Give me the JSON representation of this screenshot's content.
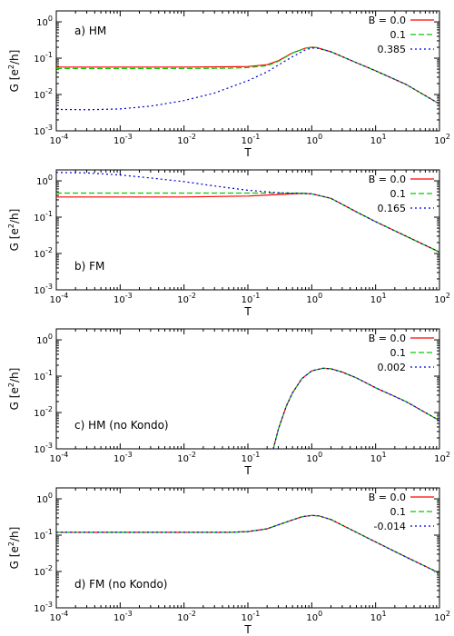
{
  "figure": {
    "x_tick_labels": [
      "10",
      "10",
      "10",
      "10",
      "10",
      "10",
      "10"
    ],
    "x_tick_exponents": [
      "-4",
      "-3",
      "-2",
      "-1",
      "0",
      "1",
      "2"
    ],
    "y_tick_labels": [
      "10",
      "10",
      "10",
      "10"
    ],
    "y_tick_exponents": [
      "0",
      "-1",
      "-2",
      "-3"
    ]
  },
  "chart_data": [
    {
      "type": "line",
      "title": "a)   HM",
      "xlabel": "T",
      "ylabel": "G [e²/h]",
      "ylabel_main": "G [e",
      "ylabel_sup": "2",
      "ylabel_end": "/h]",
      "xscale": "log",
      "yscale": "log",
      "xlim": [
        0.0001,
        100
      ],
      "ylim": [
        0.001,
        2
      ],
      "legend_position": "top-right",
      "grid": false,
      "series": [
        {
          "name": "B = 0.0",
          "color": "#ff0000",
          "dash": "solid",
          "x": [
            0.0001,
            0.001,
            0.01,
            0.05,
            0.1,
            0.2,
            0.3,
            0.5,
            0.8,
            1.0,
            1.2,
            2,
            5,
            10,
            30,
            100
          ],
          "y": [
            0.057,
            0.057,
            0.057,
            0.058,
            0.059,
            0.066,
            0.085,
            0.14,
            0.19,
            0.2,
            0.195,
            0.15,
            0.075,
            0.045,
            0.019,
            0.0055
          ]
        },
        {
          "name": "0.1",
          "color": "#00cc00",
          "dash": "6,3",
          "x": [
            0.0001,
            0.001,
            0.01,
            0.05,
            0.1,
            0.2,
            0.3,
            0.5,
            0.8,
            1.0,
            1.2,
            2,
            5,
            10,
            30,
            100
          ],
          "y": [
            0.052,
            0.052,
            0.052,
            0.053,
            0.055,
            0.062,
            0.082,
            0.138,
            0.19,
            0.2,
            0.195,
            0.15,
            0.075,
            0.045,
            0.019,
            0.0055
          ]
        },
        {
          "name": "0.385",
          "color": "#0000cc",
          "dash": "2,3",
          "x": [
            0.0001,
            0.0003,
            0.001,
            0.003,
            0.01,
            0.03,
            0.1,
            0.2,
            0.3,
            0.5,
            0.8,
            1.0,
            1.2,
            2,
            5,
            10,
            30,
            100
          ],
          "y": [
            0.0039,
            0.0038,
            0.004,
            0.0048,
            0.0068,
            0.011,
            0.024,
            0.042,
            0.065,
            0.11,
            0.17,
            0.19,
            0.19,
            0.15,
            0.075,
            0.045,
            0.019,
            0.0055
          ]
        }
      ]
    },
    {
      "type": "line",
      "title": "b)   FM",
      "xlabel": "T",
      "ylabel": "G [e²/h]",
      "ylabel_main": "G [e",
      "ylabel_sup": "2",
      "ylabel_end": "/h]",
      "xscale": "log",
      "yscale": "log",
      "xlim": [
        0.0001,
        100
      ],
      "ylim": [
        0.001,
        2
      ],
      "legend_position": "top-right",
      "grid": false,
      "series": [
        {
          "name": "B = 0.0",
          "color": "#ff0000",
          "dash": "solid",
          "x": [
            0.0001,
            0.001,
            0.01,
            0.03,
            0.1,
            0.3,
            0.7,
            1.0,
            2,
            5,
            10,
            30,
            100
          ],
          "y": [
            0.36,
            0.36,
            0.36,
            0.37,
            0.38,
            0.42,
            0.45,
            0.44,
            0.33,
            0.14,
            0.075,
            0.03,
            0.011
          ]
        },
        {
          "name": "0.1",
          "color": "#00cc00",
          "dash": "6,3",
          "x": [
            0.0001,
            0.001,
            0.01,
            0.1,
            0.3,
            0.7,
            1.0,
            2,
            5,
            10,
            30,
            100
          ],
          "y": [
            0.46,
            0.46,
            0.46,
            0.46,
            0.46,
            0.46,
            0.44,
            0.33,
            0.14,
            0.075,
            0.03,
            0.011
          ]
        },
        {
          "name": "0.165",
          "color": "#0000cc",
          "dash": "2,3",
          "x": [
            0.0001,
            0.0003,
            0.001,
            0.003,
            0.01,
            0.03,
            0.1,
            0.3,
            0.7,
            1.0,
            2,
            5,
            10,
            30,
            100
          ],
          "y": [
            1.7,
            1.65,
            1.45,
            1.2,
            0.95,
            0.72,
            0.55,
            0.47,
            0.45,
            0.44,
            0.33,
            0.14,
            0.075,
            0.03,
            0.011
          ]
        }
      ]
    },
    {
      "type": "line",
      "title": "c)   HM (no Kondo)",
      "xlabel": "T",
      "ylabel": "G [e²/h]",
      "ylabel_main": "G [e",
      "ylabel_sup": "2",
      "ylabel_end": "/h]",
      "xscale": "log",
      "yscale": "log",
      "xlim": [
        0.0001,
        100
      ],
      "ylim": [
        0.001,
        2
      ],
      "legend_position": "top-right",
      "grid": false,
      "series": [
        {
          "name": "B = 0.0",
          "color": "#ff0000",
          "dash": "solid",
          "x": [
            0.25,
            0.3,
            0.4,
            0.5,
            0.7,
            1.0,
            1.5,
            2,
            3,
            5,
            10,
            30,
            100
          ],
          "y": [
            0.001,
            0.0035,
            0.015,
            0.035,
            0.085,
            0.14,
            0.165,
            0.16,
            0.13,
            0.09,
            0.048,
            0.02,
            0.006
          ]
        },
        {
          "name": "0.1",
          "color": "#00cc00",
          "dash": "6,3",
          "x": [
            0.25,
            0.3,
            0.4,
            0.5,
            0.7,
            1.0,
            1.5,
            2,
            3,
            5,
            10,
            30,
            100
          ],
          "y": [
            0.001,
            0.0035,
            0.015,
            0.035,
            0.085,
            0.14,
            0.165,
            0.16,
            0.13,
            0.09,
            0.048,
            0.02,
            0.006
          ]
        },
        {
          "name": "0.002",
          "color": "#0000cc",
          "dash": "2,3",
          "x": [
            0.25,
            0.3,
            0.4,
            0.5,
            0.7,
            1.0,
            1.5,
            2,
            3,
            5,
            10,
            30,
            100
          ],
          "y": [
            0.001,
            0.0035,
            0.015,
            0.035,
            0.085,
            0.14,
            0.165,
            0.16,
            0.13,
            0.09,
            0.048,
            0.02,
            0.006
          ]
        }
      ]
    },
    {
      "type": "line",
      "title": "d)   FM (no Kondo)",
      "xlabel": "T",
      "ylabel": "G [e²/h]",
      "ylabel_main": "G [e",
      "ylabel_sup": "2",
      "ylabel_end": "/h]",
      "xscale": "log",
      "yscale": "log",
      "xlim": [
        0.0001,
        100
      ],
      "ylim": [
        0.001,
        2
      ],
      "legend_position": "top-right",
      "grid": false,
      "series": [
        {
          "name": "B = 0.0",
          "color": "#ff0000",
          "dash": "solid",
          "x": [
            0.0001,
            0.001,
            0.01,
            0.05,
            0.1,
            0.2,
            0.4,
            0.7,
            1.0,
            1.3,
            2,
            5,
            10,
            30,
            100
          ],
          "y": [
            0.12,
            0.12,
            0.12,
            0.12,
            0.125,
            0.15,
            0.23,
            0.32,
            0.35,
            0.34,
            0.27,
            0.12,
            0.065,
            0.025,
            0.009
          ]
        },
        {
          "name": "0.1",
          "color": "#00cc00",
          "dash": "6,3",
          "x": [
            0.0001,
            0.001,
            0.01,
            0.05,
            0.1,
            0.2,
            0.4,
            0.7,
            1.0,
            1.3,
            2,
            5,
            10,
            30,
            100
          ],
          "y": [
            0.12,
            0.12,
            0.12,
            0.12,
            0.125,
            0.15,
            0.23,
            0.32,
            0.35,
            0.34,
            0.27,
            0.12,
            0.065,
            0.025,
            0.009
          ]
        },
        {
          "name": "-0.014",
          "color": "#0000cc",
          "dash": "2,3",
          "x": [
            0.0001,
            0.001,
            0.01,
            0.05,
            0.1,
            0.2,
            0.4,
            0.7,
            1.0,
            1.3,
            2,
            5,
            10,
            30,
            100
          ],
          "y": [
            0.12,
            0.12,
            0.12,
            0.12,
            0.125,
            0.15,
            0.23,
            0.32,
            0.35,
            0.34,
            0.27,
            0.12,
            0.065,
            0.025,
            0.009
          ]
        }
      ]
    }
  ]
}
